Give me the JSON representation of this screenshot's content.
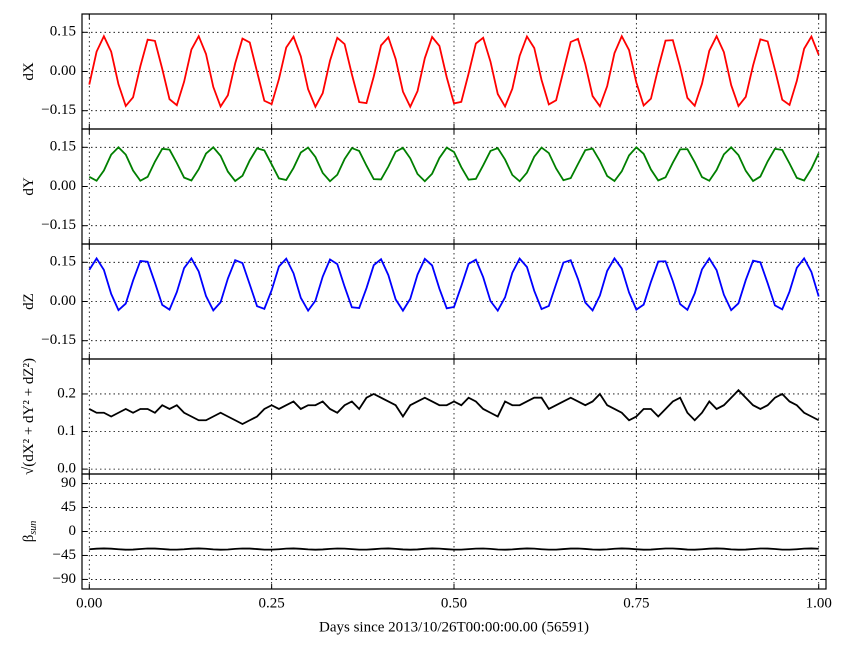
{
  "chart_data": {
    "type": "line",
    "xlabel": "Days since 2013/10/26T00:00:00.00 (56591)",
    "xlim": [
      -0.01,
      1.01
    ],
    "xticks": [
      {
        "value": 0,
        "label": "0.00"
      },
      {
        "value": 0.25,
        "label": "0.25"
      },
      {
        "value": 0.5,
        "label": "0.50"
      },
      {
        "value": 0.75,
        "label": "0.75"
      },
      {
        "value": 1,
        "label": "1.00"
      }
    ],
    "grid": true,
    "x": [
      0,
      0.01,
      0.02,
      0.03,
      0.04,
      0.05,
      0.06,
      0.07,
      0.08,
      0.09,
      0.1,
      0.11,
      0.12,
      0.13,
      0.14,
      0.15,
      0.16,
      0.17,
      0.18,
      0.19,
      0.2,
      0.21,
      0.22,
      0.23,
      0.24,
      0.25,
      0.26,
      0.27,
      0.28,
      0.29,
      0.3,
      0.31,
      0.32,
      0.33,
      0.34,
      0.35,
      0.36,
      0.37,
      0.38,
      0.39,
      0.4,
      0.41,
      0.42,
      0.43,
      0.44,
      0.45,
      0.46,
      0.47,
      0.48,
      0.49,
      0.5,
      0.51,
      0.52,
      0.53,
      0.54,
      0.55,
      0.56,
      0.57,
      0.58,
      0.59,
      0.6,
      0.61,
      0.62,
      0.63,
      0.64,
      0.65,
      0.66,
      0.67,
      0.68,
      0.69,
      0.7,
      0.71,
      0.72,
      0.73,
      0.74,
      0.75,
      0.76,
      0.77,
      0.78,
      0.79,
      0.8,
      0.81,
      0.82,
      0.83,
      0.84,
      0.85,
      0.86,
      0.87,
      0.88,
      0.89,
      0.9,
      0.91,
      0.92,
      0.93,
      0.94,
      0.95,
      0.96,
      0.97,
      0.98,
      0.99,
      1
    ],
    "panels": [
      {
        "ylabel": {
          "text": "dX"
        },
        "ylim": [
          -0.22,
          0.22
        ],
        "yticks": [
          {
            "value": 0.15,
            "label": "0.15"
          },
          {
            "value": 0,
            "label": "0.00"
          },
          {
            "value": -0.15,
            "label": "−0.15"
          }
        ],
        "series": [
          {
            "color": "#ff0000",
            "values": [
              -0.05,
              0.076,
              0.135,
              0.076,
              -0.049,
              -0.132,
              -0.099,
              0.02,
              0.122,
              0.117,
              0.01,
              -0.106,
              -0.129,
              -0.039,
              0.084,
              0.135,
              0.067,
              -0.059,
              -0.134,
              -0.091,
              0.031,
              0.126,
              0.111,
              -0.001,
              -0.112,
              -0.125,
              -0.029,
              0.092,
              0.133,
              0.058,
              -0.068,
              -0.135,
              -0.083,
              0.041,
              0.129,
              0.105,
              -0.011,
              -0.117,
              -0.121,
              -0.019,
              0.1,
              0.131,
              0.048,
              -0.077,
              -0.135,
              -0.075,
              0.051,
              0.132,
              0.098,
              -0.022,
              -0.122,
              -0.116,
              -0.008,
              0.107,
              0.129,
              0.038,
              -0.086,
              -0.134,
              -0.066,
              0.06,
              0.134,
              0.09,
              -0.032,
              -0.126,
              -0.11,
              0.002,
              0.113,
              0.125,
              0.028,
              -0.094,
              -0.133,
              -0.056,
              0.07,
              0.135,
              0.082,
              -0.042,
              -0.13,
              -0.104,
              0.013,
              0.118,
              0.12,
              0.017,
              -0.101,
              -0.131,
              -0.047,
              0.079,
              0.135,
              0.074,
              -0.052,
              -0.132,
              -0.097,
              0.023,
              0.123,
              0.115,
              0.007,
              -0.108,
              -0.128,
              -0.036,
              0.087,
              0.134,
              0.064
            ]
          }
        ]
      },
      {
        "ylabel": {
          "text": "dY"
        },
        "ylim": [
          -0.22,
          0.22
        ],
        "yticks": [
          {
            "value": 0.15,
            "label": "0.15"
          },
          {
            "value": 0,
            "label": "0.00"
          },
          {
            "value": -0.15,
            "label": "−0.15"
          }
        ],
        "series": [
          {
            "color": "#007f00",
            "values": [
              0.037,
              0.022,
              0.061,
              0.122,
              0.15,
              0.122,
              0.061,
              0.022,
              0.037,
              0.095,
              0.144,
              0.141,
              0.09,
              0.034,
              0.023,
              0.066,
              0.126,
              0.15,
              0.117,
              0.057,
              0.021,
              0.041,
              0.1,
              0.146,
              0.138,
              0.085,
              0.031,
              0.025,
              0.071,
              0.13,
              0.149,
              0.113,
              0.052,
              0.02,
              0.045,
              0.105,
              0.147,
              0.136,
              0.08,
              0.028,
              0.027,
              0.076,
              0.133,
              0.148,
              0.108,
              0.048,
              0.02,
              0.049,
              0.109,
              0.149,
              0.132,
              0.074,
              0.026,
              0.029,
              0.081,
              0.136,
              0.147,
              0.103,
              0.044,
              0.02,
              0.053,
              0.114,
              0.149,
              0.128,
              0.069,
              0.024,
              0.032,
              0.086,
              0.139,
              0.145,
              0.098,
              0.04,
              0.021,
              0.058,
              0.119,
              0.15,
              0.125,
              0.065,
              0.023,
              0.035,
              0.091,
              0.142,
              0.143,
              0.093,
              0.036,
              0.022,
              0.063,
              0.123,
              0.15,
              0.12,
              0.06,
              0.021,
              0.038,
              0.096,
              0.144,
              0.14,
              0.088,
              0.033,
              0.023,
              0.068,
              0.127
            ]
          }
        ]
      },
      {
        "ylabel": {
          "text": "dZ"
        },
        "ylim": [
          -0.22,
          0.22
        ],
        "yticks": [
          {
            "value": 0.15,
            "label": "0.15"
          },
          {
            "value": 0,
            "label": "0.00"
          },
          {
            "value": -0.15,
            "label": "−0.15"
          }
        ],
        "series": [
          {
            "color": "#0000ff",
            "values": [
              0.121,
              0.165,
              0.121,
              0.029,
              -0.033,
              -0.008,
              0.08,
              0.155,
              0.152,
              0.072,
              -0.013,
              -0.031,
              0.036,
              0.128,
              0.165,
              0.115,
              0.021,
              -0.034,
              -0.003,
              0.088,
              0.158,
              0.147,
              0.065,
              -0.018,
              -0.028,
              0.043,
              0.134,
              0.164,
              0.108,
              0.014,
              -0.035,
              0.003,
              0.095,
              0.161,
              0.143,
              0.057,
              -0.022,
              -0.025,
              0.051,
              0.139,
              0.162,
              0.101,
              0.008,
              -0.035,
              0.01,
              0.103,
              0.163,
              0.138,
              0.049,
              -0.026,
              -0.021,
              0.059,
              0.144,
              0.16,
              0.093,
              0.002,
              -0.035,
              0.016,
              0.11,
              0.164,
              0.132,
              0.041,
              -0.029,
              -0.017,
              0.067,
              0.149,
              0.158,
              0.086,
              -0.004,
              -0.034,
              0.023,
              0.117,
              0.165,
              0.126,
              0.034,
              -0.031,
              -0.012,
              0.075,
              0.153,
              0.154,
              0.078,
              -0.01,
              -0.032,
              0.031,
              0.123,
              0.165,
              0.12,
              0.026,
              -0.033,
              -0.007,
              0.082,
              0.156,
              0.15,
              0.07,
              -0.015,
              -0.03,
              0.038,
              0.129,
              0.165,
              0.113,
              0.019
            ]
          }
        ]
      },
      {
        "ylabel": {
          "text": "√(dX² + dY² + dZ²)"
        },
        "ylim": [
          -0.013,
          0.293
        ],
        "yticks": [
          {
            "value": 0,
            "label": "0.0"
          },
          0.1,
          0.2
        ],
        "series": [
          {
            "color": "#000000",
            "values": [
              0.16,
              0.15,
              0.15,
              0.14,
              0.15,
              0.16,
              0.15,
              0.16,
              0.16,
              0.15,
              0.17,
              0.16,
              0.17,
              0.15,
              0.14,
              0.13,
              0.13,
              0.14,
              0.15,
              0.14,
              0.13,
              0.12,
              0.13,
              0.14,
              0.16,
              0.17,
              0.16,
              0.17,
              0.18,
              0.16,
              0.17,
              0.17,
              0.18,
              0.16,
              0.15,
              0.17,
              0.18,
              0.16,
              0.19,
              0.2,
              0.19,
              0.18,
              0.17,
              0.14,
              0.17,
              0.18,
              0.19,
              0.18,
              0.17,
              0.17,
              0.18,
              0.17,
              0.19,
              0.18,
              0.16,
              0.15,
              0.14,
              0.18,
              0.17,
              0.17,
              0.18,
              0.19,
              0.19,
              0.16,
              0.17,
              0.18,
              0.19,
              0.18,
              0.17,
              0.18,
              0.2,
              0.17,
              0.16,
              0.15,
              0.13,
              0.14,
              0.16,
              0.16,
              0.14,
              0.16,
              0.18,
              0.19,
              0.15,
              0.13,
              0.15,
              0.18,
              0.16,
              0.17,
              0.19,
              0.21,
              0.19,
              0.17,
              0.16,
              0.17,
              0.19,
              0.2,
              0.18,
              0.17,
              0.15,
              0.14,
              0.13
            ]
          }
        ]
      },
      {
        "ylabel": {
          "text": "β",
          "sub": "sun"
        },
        "ylim": [
          -108,
          108
        ],
        "yticks": [
          90,
          45,
          0,
          {
            "value": -45,
            "label": "−45"
          },
          {
            "value": -90,
            "label": "−90"
          }
        ],
        "series": [
          {
            "color": "#000000",
            "values": [
              -33.4,
              -32.3,
              -31.8,
              -32.3,
              -33.4,
              -34.2,
              -33.9,
              -32.8,
              -31.9,
              -32.0,
              -32.9,
              -33.9,
              -34.1,
              -33.4,
              -32.3,
              -31.8,
              -32.4,
              -33.5,
              -34.2,
              -33.8,
              -32.7,
              -31.9,
              -32.0,
              -33.0,
              -34.0,
              -34.1,
              -33.3,
              -32.2,
              -31.8,
              -32.5,
              -33.6,
              -34.2,
              -33.7,
              -32.6,
              -31.9,
              -32.1,
              -33.1,
              -34.0,
              -34.1,
              -33.2,
              -32.1,
              -31.8,
              -32.6,
              -33.7,
              -34.2,
              -33.7,
              -32.5,
              -31.8,
              -32.1,
              -33.2,
              -34.1,
              -34.0,
              -33.1,
              -32.1,
              -31.9,
              -32.7,
              -33.8,
              -34.2,
              -33.6,
              -32.5,
              -31.8,
              -32.2,
              -33.3,
              -34.1,
              -34.0,
              -33.0,
              -32.0,
              -31.9,
              -32.8,
              -33.8,
              -34.2,
              -33.5,
              -32.4,
              -31.8,
              -32.3,
              -33.4,
              -34.2,
              -33.9,
              -32.9,
              -31.9,
              -31.9,
              -32.8,
              -33.9,
              -34.2,
              -33.4,
              -32.3,
              -31.8,
              -32.3,
              -33.5,
              -34.2,
              -33.9,
              -32.8,
              -31.9,
              -32.0,
              -32.9,
              -34.0,
              -34.1,
              -33.3,
              -32.2,
              -31.8,
              -32.4
            ]
          }
        ]
      }
    ]
  }
}
